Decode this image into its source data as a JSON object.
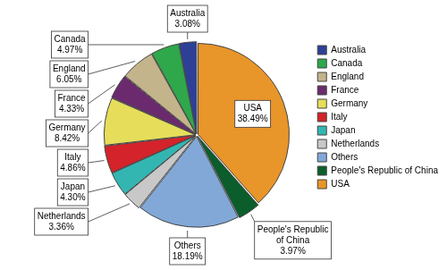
{
  "chart_data": {
    "type": "pie",
    "categories": [
      "USA",
      "People's Republic of China",
      "Others",
      "Netherlands",
      "Japan",
      "Italy",
      "Germany",
      "France",
      "England",
      "Canada",
      "Australia"
    ],
    "values": [
      38.49,
      3.97,
      18.19,
      3.36,
      4.3,
      4.86,
      8.42,
      4.33,
      6.05,
      4.97,
      3.08
    ],
    "value_labels": [
      "38.49%",
      "3.97%",
      "18.19%",
      "3.36%",
      "4.30%",
      "4.86%",
      "8.42%",
      "4.33%",
      "6.05%",
      "4.97%",
      "3.08%"
    ],
    "colors": [
      "#e8952a",
      "#0b5e2c",
      "#82a8d8",
      "#c8c8c8",
      "#33b6b2",
      "#d4232a",
      "#e6de5a",
      "#6b2a6e",
      "#c4b48c",
      "#2ea84a",
      "#2e3f96"
    ],
    "legend": "right",
    "data_labels": true
  }
}
